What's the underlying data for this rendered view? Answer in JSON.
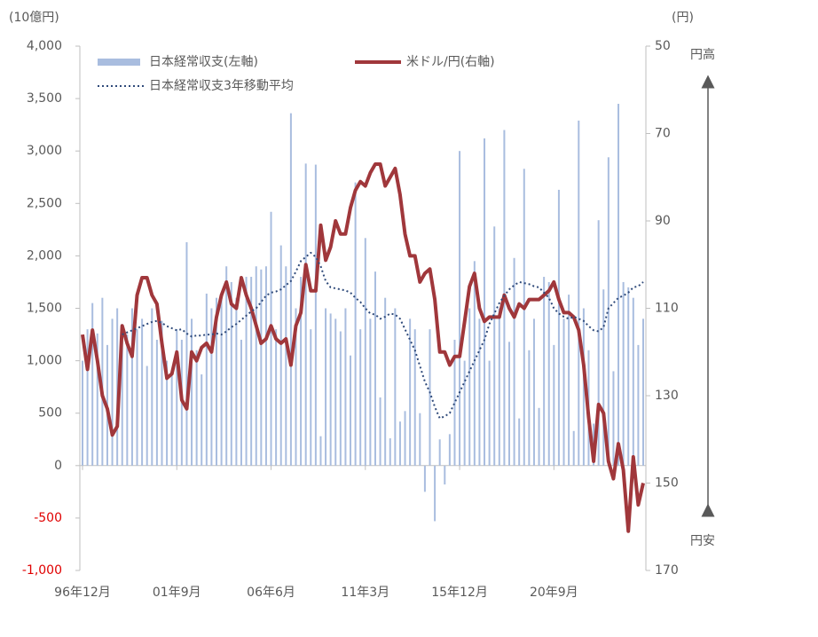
{
  "chart_data": {
    "type": "bar-line",
    "y_unit": "(10億円)",
    "y2_unit": "(円)",
    "annotations": {
      "top": "円高",
      "bottom": "円安"
    },
    "categories": [
      "96年12月",
      null,
      null,
      null,
      null,
      null,
      null,
      null,
      null,
      null,
      null,
      null,
      null,
      null,
      null,
      null,
      null,
      null,
      null,
      "01年9月",
      null,
      null,
      null,
      null,
      null,
      null,
      null,
      null,
      null,
      null,
      null,
      null,
      null,
      null,
      null,
      null,
      null,
      null,
      "06年6月",
      null,
      null,
      null,
      null,
      null,
      null,
      null,
      null,
      null,
      null,
      null,
      null,
      null,
      null,
      null,
      null,
      null,
      null,
      "11年3月",
      null,
      null,
      null,
      null,
      null,
      null,
      null,
      null,
      null,
      null,
      null,
      null,
      null,
      null,
      null,
      null,
      null,
      null,
      "15年12月",
      null,
      null,
      null,
      null,
      null,
      null,
      null,
      null,
      null,
      null,
      null,
      null,
      null,
      null,
      null,
      null,
      null,
      null,
      "20年9月",
      null,
      null,
      null,
      null,
      null,
      null,
      null,
      null,
      null,
      null,
      null,
      null,
      null,
      null,
      null,
      null,
      null,
      null
    ],
    "series": [
      {
        "name": "日本経常収支(左軸)",
        "kind": "bar",
        "color": "#a9bddf",
        "values": [
          1000,
          1300,
          1550,
          1260,
          1600,
          1150,
          1400,
          1500,
          1350,
          1250,
          1500,
          1300,
          1400,
          950,
          1500,
          1200,
          1380,
          1000,
          880,
          1300,
          1200,
          2130,
          1400,
          1100,
          870,
          1640,
          1500,
          1600,
          1650,
          1900,
          1750,
          1600,
          1200,
          1800,
          1800,
          1900,
          1870,
          1900,
          2420,
          1300,
          2100,
          1900,
          3360,
          1500,
          1800,
          2880,
          1300,
          2870,
          280,
          1500,
          1450,
          1400,
          1280,
          1500,
          1050,
          2700,
          1300,
          2170,
          1400,
          1850,
          650,
          1600,
          260,
          1500,
          420,
          520,
          1400,
          1300,
          500,
          -250,
          1300,
          -530,
          250,
          -180,
          300,
          1200,
          3000,
          1000,
          1500,
          1950,
          1400,
          3120,
          1000,
          2280,
          1500,
          3200,
          1180,
          1980,
          450,
          2830,
          1100,
          1400,
          550,
          1800,
          1750,
          1150,
          2630,
          1400,
          1630,
          330,
          3290,
          1500,
          1100,
          400,
          2340,
          1680,
          2940,
          900,
          3450,
          1750,
          1700,
          1600,
          1150,
          1400
        ]
      },
      {
        "name": "米ドル/円(右軸)",
        "kind": "line",
        "axis": "y2",
        "color": "#a0373b",
        "values": [
          116,
          124,
          115,
          122,
          130,
          133,
          139,
          137,
          114,
          118,
          121,
          107,
          103,
          103,
          107,
          109,
          118,
          126,
          125,
          120,
          131,
          133,
          120,
          122,
          119,
          118,
          120,
          112,
          107,
          104,
          109,
          110,
          103,
          107,
          110,
          114,
          118,
          117,
          114,
          117,
          118,
          117,
          123,
          114,
          111,
          100,
          106,
          106,
          91,
          99,
          96,
          90,
          93,
          93,
          87,
          83,
          81,
          82,
          79,
          77,
          77,
          82,
          80,
          78,
          84,
          93,
          98,
          98,
          104,
          102,
          101,
          108,
          120,
          120,
          123,
          121,
          121,
          113,
          105,
          102,
          110,
          113,
          112,
          112,
          112,
          107,
          110,
          112,
          109,
          110,
          108,
          108,
          108,
          107,
          106,
          104,
          108,
          111,
          111,
          112,
          115,
          123,
          135,
          145,
          132,
          134,
          145,
          149,
          141,
          147,
          161,
          144,
          155,
          150
        ]
      },
      {
        "name": "日本経常収支3年移動平均",
        "kind": "dotted",
        "color": "#2f4a7a",
        "values": [
          null,
          null,
          null,
          null,
          null,
          null,
          null,
          null,
          1250,
          1270,
          1290,
          1310,
          1330,
          1350,
          1370,
          1380,
          1360,
          1330,
          1310,
          1290,
          1300,
          1260,
          1230,
          1240,
          1240,
          1250,
          1250,
          1260,
          1250,
          1280,
          1320,
          1350,
          1390,
          1430,
          1470,
          1500,
          1560,
          1620,
          1650,
          1660,
          1680,
          1720,
          1760,
          1850,
          1950,
          1990,
          2030,
          1990,
          1900,
          1760,
          1700,
          1690,
          1680,
          1670,
          1650,
          1600,
          1560,
          1500,
          1450,
          1440,
          1400,
          1420,
          1450,
          1440,
          1400,
          1300,
          1200,
          1100,
          950,
          800,
          700,
          560,
          450,
          470,
          500,
          600,
          700,
          800,
          900,
          1000,
          1100,
          1200,
          1350,
          1450,
          1550,
          1620,
          1680,
          1720,
          1750,
          1740,
          1730,
          1710,
          1700,
          1650,
          1600,
          1500,
          1450,
          1420,
          1400,
          1420,
          1400,
          1380,
          1330,
          1290,
          1280,
          1320,
          1500,
          1550,
          1600,
          1620,
          1650,
          1700,
          1710,
          1750
        ]
      }
    ],
    "ylim": [
      -1000,
      4000
    ],
    "yticks": [
      {
        "value": -1000,
        "label": "-1,000"
      },
      -500,
      0,
      500,
      {
        "value": 1000,
        "label": "1,000"
      },
      {
        "value": 1500,
        "label": "1,500"
      },
      {
        "value": 2000,
        "label": "2,000"
      },
      {
        "value": 2500,
        "label": "2,500"
      },
      {
        "value": 3000,
        "label": "3,000"
      },
      {
        "value": 3500,
        "label": "3,500"
      },
      {
        "value": 4000,
        "label": "4,000"
      }
    ],
    "y2lim": [
      170,
      50
    ],
    "y2ticks": [
      50,
      70,
      90,
      110,
      130,
      150,
      170
    ],
    "negative_tick_color": "#e00000",
    "legend": "top-left"
  }
}
